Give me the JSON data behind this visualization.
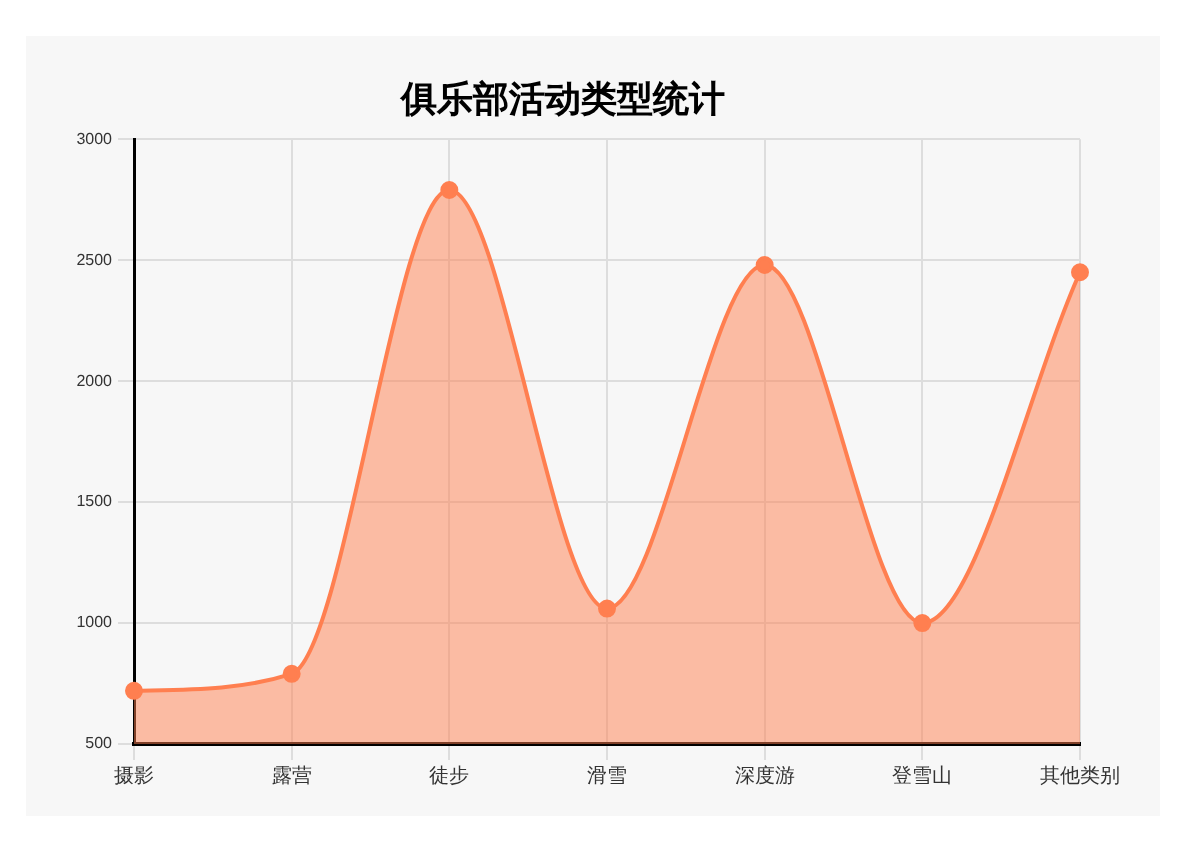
{
  "chart_data": {
    "type": "area",
    "title": "俱乐部活动类型统计",
    "categories": [
      "摄影",
      "露营",
      "徒步",
      "滑雪",
      "深度游",
      "登雪山",
      "其他类别"
    ],
    "series": [
      {
        "color": "#ff7f50",
        "values": [
          720,
          790,
          2790,
          1060,
          2480,
          1000,
          2450
        ]
      }
    ],
    "ylim": [
      500,
      3000
    ],
    "yticks": [
      500,
      1000,
      1500,
      2000,
      2500,
      3000
    ],
    "grid": true,
    "legend": false,
    "marker": "circle"
  }
}
